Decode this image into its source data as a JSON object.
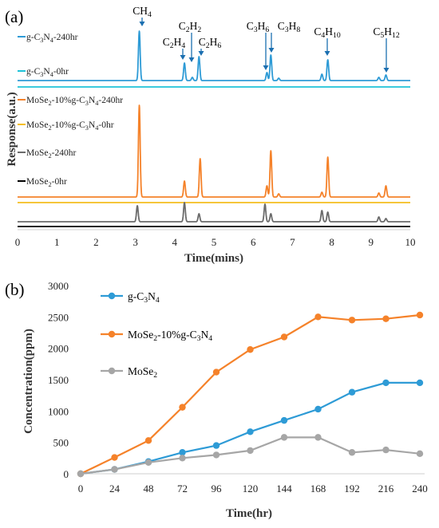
{
  "colors": {
    "blue": "#2e9bd6",
    "cyan": "#1ec2d8",
    "orange": "#f5822a",
    "yellow": "#f5be1e",
    "gray": "#6b6b6b",
    "lightgray": "#a6a6a6",
    "black": "#000000"
  },
  "chart_data": [
    {
      "panel_label": "(a)",
      "type": "line",
      "xlabel": "Time(mins)",
      "ylabel": "Response(a.u.)",
      "xlim": [
        0,
        10
      ],
      "x_ticks": [
        0,
        1,
        2,
        3,
        4,
        5,
        6,
        7,
        8,
        9,
        10
      ],
      "peak_labels": [
        {
          "label": "CH",
          "sub": "4",
          "time": 3.1
        },
        {
          "label": "C",
          "sub": "2",
          "label2": "H",
          "sub2": "4",
          "time": 4.25
        },
        {
          "label": "C",
          "sub": "2",
          "label2": "H",
          "sub2": "2",
          "time": 4.45
        },
        {
          "label": "C",
          "sub": "2",
          "label2": "H",
          "sub2": "6",
          "time": 4.62
        },
        {
          "label": "C",
          "sub": "3",
          "label2": "H",
          "sub2": "6",
          "time": 6.35
        },
        {
          "label": "C",
          "sub": "3",
          "label2": "H",
          "sub2": "8",
          "time": 6.45
        },
        {
          "label": "C",
          "sub": "4",
          "label2": "H",
          "sub2": "10",
          "time": 7.9
        },
        {
          "label": "C",
          "sub": "5",
          "label2": "H",
          "sub2": "12",
          "time": 9.38
        }
      ],
      "series": [
        {
          "name": "g-C3N4-240hr",
          "name_parts": [
            "g-C",
            "3",
            "N",
            "4",
            "-240hr"
          ],
          "color_key": "blue",
          "peaks": [
            [
              3.1,
              62
            ],
            [
              4.25,
              22
            ],
            [
              4.45,
              4
            ],
            [
              4.62,
              30
            ],
            [
              6.35,
              10
            ],
            [
              6.45,
              32
            ],
            [
              6.65,
              3
            ],
            [
              7.75,
              8
            ],
            [
              7.9,
              26
            ],
            [
              9.2,
              4
            ],
            [
              9.38,
              7
            ]
          ]
        },
        {
          "name": "g-C3N4-0hr",
          "name_parts": [
            "g-C",
            "3",
            "N",
            "4",
            "-0hr"
          ],
          "color_key": "cyan",
          "peaks": []
        },
        {
          "name": "MoSe2-10%g-C3N4-240hr",
          "name_parts": [
            "MoSe",
            "2",
            "-10%g-C",
            "3",
            "N",
            "4",
            "-240hr"
          ],
          "color_key": "orange",
          "peaks": [
            [
              3.1,
              115
            ],
            [
              4.25,
              20
            ],
            [
              4.65,
              48
            ],
            [
              6.35,
              14
            ],
            [
              6.45,
              58
            ],
            [
              6.65,
              4
            ],
            [
              7.75,
              6
            ],
            [
              7.9,
              50
            ],
            [
              9.2,
              5
            ],
            [
              9.38,
              14
            ]
          ]
        },
        {
          "name": "MoSe2-10%g-C3N4-0hr",
          "name_parts": [
            "MoSe",
            "2",
            "-10%g-C",
            "3",
            "N",
            "4",
            "-0hr"
          ],
          "color_key": "yellow",
          "peaks": []
        },
        {
          "name": "MoSe2-240hr",
          "name_parts": [
            "MoSe",
            "2",
            "-240hr"
          ],
          "color_key": "gray",
          "peaks": [
            [
              3.05,
              20
            ],
            [
              4.25,
              24
            ],
            [
              4.62,
              10
            ],
            [
              6.3,
              22
            ],
            [
              6.45,
              10
            ],
            [
              7.75,
              14
            ],
            [
              7.9,
              12
            ],
            [
              9.2,
              6
            ],
            [
              9.38,
              4
            ]
          ]
        },
        {
          "name": "MoSe2-0hr",
          "name_parts": [
            "MoSe",
            "2",
            "-0hr"
          ],
          "color_key": "black",
          "peaks": []
        }
      ]
    },
    {
      "panel_label": "(b)",
      "type": "line",
      "xlabel": "Time(hr)",
      "ylabel": "Concentration(ppm)",
      "ylim": [
        0,
        3000
      ],
      "y_ticks": [
        0,
        500,
        1000,
        1500,
        2000,
        2500,
        3000
      ],
      "x": [
        0,
        24,
        48,
        72,
        96,
        120,
        144,
        168,
        192,
        216,
        240
      ],
      "series": [
        {
          "name": "g-C3N4",
          "name_parts": [
            "g-C",
            "3",
            "N",
            "4"
          ],
          "color_key": "blue",
          "values": [
            0,
            70,
            195,
            340,
            450,
            670,
            850,
            1030,
            1300,
            1450,
            1450
          ]
        },
        {
          "name": "MoSe2-10%g-C3N4",
          "name_parts": [
            "MoSe",
            "2",
            "-10%g-C",
            "3",
            "N",
            "4"
          ],
          "color_key": "orange",
          "values": [
            0,
            260,
            530,
            1060,
            1620,
            1980,
            2180,
            2500,
            2450,
            2470,
            2530
          ]
        },
        {
          "name": "MoSe2",
          "name_parts": [
            "MoSe",
            "2"
          ],
          "color_key": "lightgray",
          "values": [
            0,
            70,
            180,
            250,
            300,
            370,
            580,
            580,
            340,
            380,
            320
          ]
        }
      ]
    }
  ]
}
